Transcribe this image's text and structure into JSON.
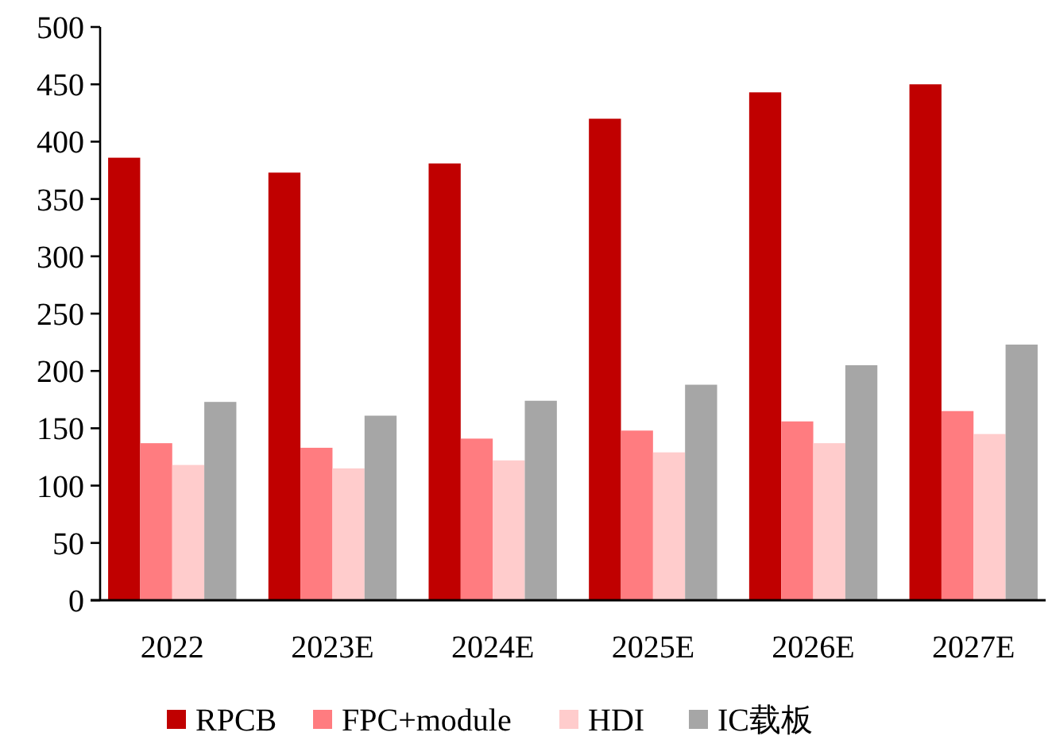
{
  "chart_data": {
    "type": "bar",
    "categories": [
      "2022",
      "2023E",
      "2024E",
      "2025E",
      "2026E",
      "2027E"
    ],
    "series": [
      {
        "name": "RPCB",
        "color": "#c00000",
        "values": [
          386,
          373,
          381,
          420,
          443,
          450
        ]
      },
      {
        "name": "FPC+module",
        "color": "#ff7c80",
        "values": [
          137,
          133,
          141,
          148,
          156,
          165
        ]
      },
      {
        "name": "HDI",
        "color": "#ffcccc",
        "values": [
          118,
          115,
          122,
          129,
          137,
          145
        ]
      },
      {
        "name": "IC载板",
        "color": "#a6a6a6",
        "values": [
          173,
          161,
          174,
          188,
          205,
          223
        ]
      }
    ],
    "ylim": [
      0,
      500
    ],
    "yticks": [
      0,
      50,
      100,
      150,
      200,
      250,
      300,
      350,
      400,
      450,
      500
    ],
    "grid": false,
    "legend": "bottom"
  }
}
